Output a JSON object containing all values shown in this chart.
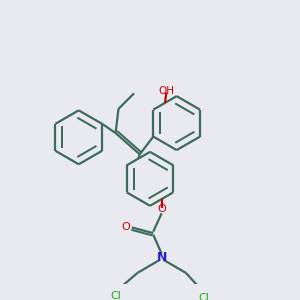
{
  "background_color": "#e8eaf0",
  "bond_color": "#3d6b5a",
  "atom_colors": {
    "O": "#cc0000",
    "N": "#2020cc",
    "Cl": "#22aa22",
    "C": "#3d6b5a"
  },
  "lw": 1.6,
  "dbo": 0.09,
  "figsize": [
    3.0,
    3.0
  ],
  "dpi": 100
}
